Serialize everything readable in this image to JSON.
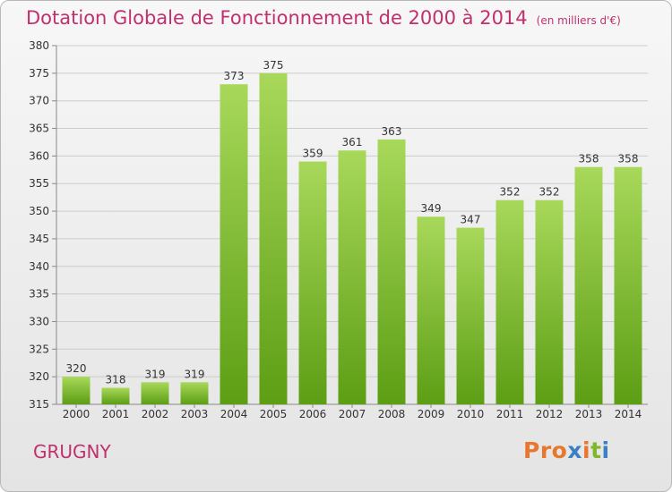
{
  "title": "Dotation Globale de Fonctionnement de 2000 à 2014",
  "unit": "(en milliers d'€)",
  "commune": "GRUGNY",
  "logo": {
    "text": "Proxiti",
    "colors": [
      "#e8772e",
      "#e8772e",
      "#e8772e",
      "#3b7fc4",
      "#e8772e",
      "#7fb72e",
      "#3b7fc4"
    ]
  },
  "colors": {
    "bar_light": "#a8d85a",
    "bar_dark": "#5c9e14",
    "grid": "#cccccc",
    "accent": "#c0306e"
  },
  "chart_data": {
    "type": "bar",
    "categories": [
      "2000",
      "2001",
      "2002",
      "2003",
      "2004",
      "2005",
      "2006",
      "2007",
      "2008",
      "2009",
      "2010",
      "2011",
      "2012",
      "2013",
      "2014"
    ],
    "values": [
      320,
      318,
      319,
      319,
      373,
      375,
      359,
      361,
      363,
      349,
      347,
      352,
      352,
      358,
      358
    ],
    "ylim": [
      315,
      380
    ],
    "yticks": [
      315,
      320,
      325,
      330,
      335,
      340,
      345,
      350,
      355,
      360,
      365,
      370,
      375,
      380
    ],
    "grid": true,
    "data_labels": true
  }
}
